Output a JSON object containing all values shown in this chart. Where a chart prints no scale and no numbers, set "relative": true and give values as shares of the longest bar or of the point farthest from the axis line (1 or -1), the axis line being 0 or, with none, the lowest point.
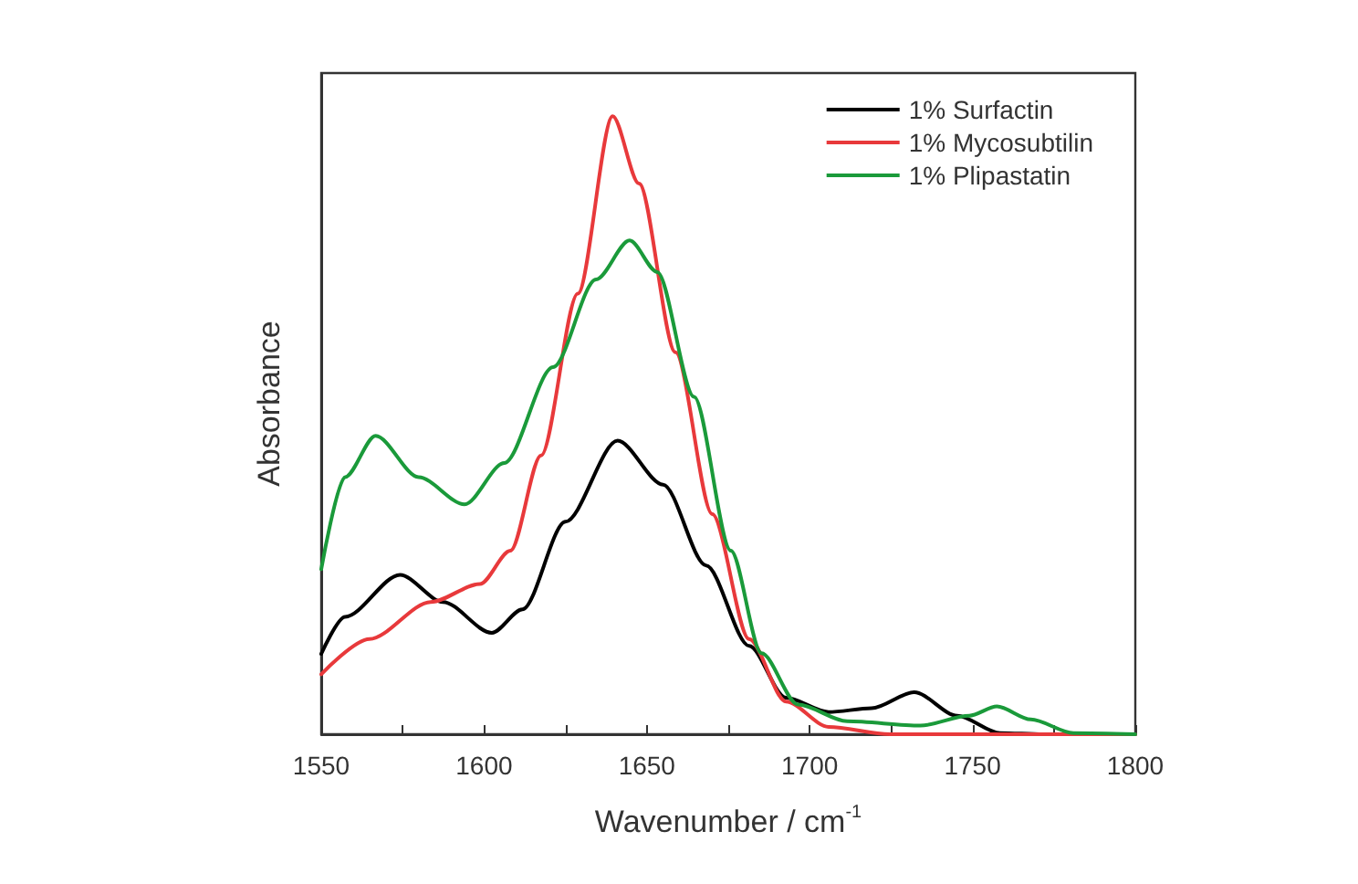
{
  "chart_data": {
    "type": "line",
    "xlabel": "Wavenumber / cm$^{-1}$",
    "ylabel": "Absorbance",
    "relative": true,
    "xlim": [
      1550,
      1800
    ],
    "xticks": [
      1550,
      {
        "value": 1575,
        "label": null
      },
      1600,
      {
        "value": 1625,
        "label": null
      },
      1650,
      {
        "value": 1675,
        "label": null
      },
      1700,
      {
        "value": 1725,
        "label": null
      },
      1750,
      {
        "value": 1775,
        "label": null
      },
      1800
    ],
    "tick_labels": "x",
    "grid": false,
    "legend": "top right",
    "marker": "none",
    "line_style": "solid",
    "series": [
      {
        "name": "1% Surfactin",
        "color": "#000000",
        "x": [
          1550,
          1557.3,
          1574.2,
          1587.4,
          1602.4,
          1611.8,
          1625,
          1641,
          1655,
          1668.2,
          1681.4,
          1692.7,
          1705.8,
          1719,
          1732.1,
          1745.3,
          1758.5,
          1771.6,
          1800
        ],
        "values": [
          0.13,
          0.19,
          0.258,
          0.214,
          0.164,
          0.202,
          0.344,
          0.475,
          0.404,
          0.273,
          0.143,
          0.059,
          0.036,
          0.042,
          0.068,
          0.03,
          0.002,
          0,
          0
        ]
      },
      {
        "name": "1% Mycosubtilin",
        "color": "#e8393b",
        "x": [
          1550,
          1564.8,
          1583.6,
          1598.7,
          1608.1,
          1617.5,
          1628.8,
          1639.5,
          1647.6,
          1658.8,
          1670.1,
          1681.4,
          1692.7,
          1705.8,
          1724.6,
          1800
        ],
        "values": [
          0.097,
          0.154,
          0.214,
          0.243,
          0.297,
          0.451,
          0.713,
          1,
          0.891,
          0.618,
          0.356,
          0.154,
          0.053,
          0.012,
          0,
          0
        ]
      },
      {
        "name": "1% Plipastatin",
        "color": "#1a9a3a",
        "x": [
          1550,
          1557.3,
          1566.7,
          1579.9,
          1594,
          1606.2,
          1621.2,
          1634.4,
          1644.7,
          1653.2,
          1664.5,
          1675.8,
          1685.2,
          1696.4,
          1711.5,
          1734,
          1749,
          1757.5,
          1767.9,
          1781,
          1800
        ],
        "values": [
          0.267,
          0.416,
          0.483,
          0.416,
          0.372,
          0.439,
          0.594,
          0.736,
          0.799,
          0.748,
          0.546,
          0.297,
          0.131,
          0.048,
          0.021,
          0.014,
          0.03,
          0.045,
          0.024,
          0.002,
          0
        ]
      }
    ]
  }
}
